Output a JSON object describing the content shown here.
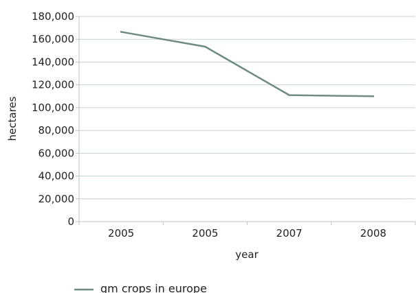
{
  "chart_data": {
    "type": "line",
    "categories": [
      "2005",
      "2005",
      "2007",
      "2008"
    ],
    "series": [
      {
        "name": "gm crops in europe",
        "values": [
          166500,
          153500,
          111000,
          110000
        ],
        "color": "#6e8b7f"
      }
    ],
    "xlabel": "year",
    "ylabel": "hectares",
    "ylim": [
      0,
      180000
    ],
    "yticks": [
      "0",
      "20,000",
      "40,000",
      "60,000",
      "80,000",
      "100,000",
      "120,000",
      "140,000",
      "160,000",
      "180,000"
    ],
    "ytick_values": [
      0,
      20000,
      40000,
      60000,
      80000,
      100000,
      120000,
      140000,
      160000,
      180000
    ],
    "grid": "horizontal",
    "legend_position": "bottom-left"
  }
}
